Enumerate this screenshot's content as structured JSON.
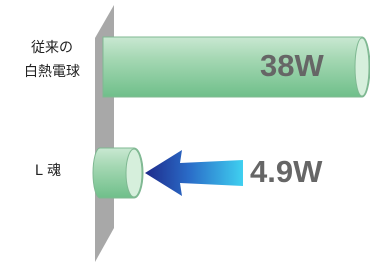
{
  "items": [
    {
      "label_lines": [
        "従来の",
        "白熱電球"
      ],
      "value": "38W"
    },
    {
      "label_lines": [
        "L 魂"
      ],
      "value": "4.9W"
    }
  ]
}
